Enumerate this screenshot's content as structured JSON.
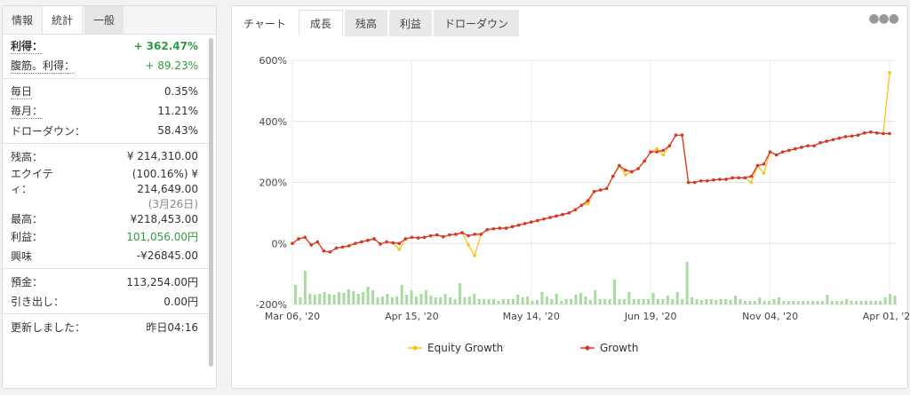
{
  "left_tabs": [
    "情報",
    "統計",
    "一般"
  ],
  "stats": {
    "profit_label": "利得：",
    "profit": "+ 362.47%",
    "abs_label": "腹筋。利得：",
    "abs": "+ 89.23%",
    "daily_label": "毎日",
    "daily": "0.35%",
    "monthly_label": "毎月：",
    "monthly": "11.21%",
    "drawdown_label": "ドローダウン：",
    "drawdown": "58.43%",
    "balance_label": "残高：",
    "balance": "¥ 214,310.00",
    "equity_label_1": "エクイテ",
    "equity_label_2": "ィ：",
    "equity_pct": "(100.16%) ¥",
    "equity": "214,649.00",
    "high_label": "最高：",
    "high_date": "(3月26日)",
    "high": "¥218,453.00",
    "gain_label": "利益：",
    "gain": "101,056.00円",
    "interest_label": "興味",
    "interest": "-¥26845.00",
    "deposit_label": "預金：",
    "deposit": "113,254.00円",
    "withdraw_label": "引き出し：",
    "withdraw": "0.00円",
    "updated_label": "更新しました：",
    "updated": "昨日04:16"
  },
  "right_tabs": [
    "チャート",
    "成長",
    "残高",
    "利益",
    "ドローダウン"
  ],
  "more_icon": "more-dots-icon",
  "colors": {
    "equity": "#f5c518",
    "growth": "#d9342b",
    "bars": "#a9dba0",
    "green": "#2d9e3a"
  },
  "chart_data": {
    "type": "line",
    "y_ticks": [
      "600%",
      "400%",
      "200%",
      "0%",
      "-200%"
    ],
    "ylim": [
      -200,
      600
    ],
    "x_ticks": [
      "Mar 06, '20",
      "Apr 15, '20",
      "May 14, '20",
      "Jun 19, '20",
      "Nov 04, '20",
      "Apr 01, '21"
    ],
    "legend": [
      "Equity Growth",
      "Growth"
    ],
    "growth": [
      0,
      15,
      20,
      -5,
      5,
      -25,
      -28,
      -15,
      -12,
      -8,
      0,
      5,
      10,
      15,
      -2,
      5,
      2,
      0,
      15,
      20,
      18,
      20,
      25,
      28,
      22,
      28,
      30,
      35,
      25,
      30,
      30,
      45,
      48,
      50,
      50,
      55,
      60,
      65,
      70,
      75,
      80,
      85,
      90,
      95,
      100,
      110,
      125,
      140,
      170,
      175,
      180,
      220,
      255,
      240,
      235,
      245,
      270,
      300,
      300,
      305,
      320,
      355,
      355,
      200,
      200,
      205,
      205,
      208,
      210,
      210,
      215,
      215,
      215,
      220,
      255,
      260,
      300,
      290,
      300,
      305,
      310,
      315,
      320,
      320,
      330,
      335,
      340,
      345,
      350,
      352,
      355,
      362,
      365,
      362,
      360,
      360
    ],
    "equity": [
      0,
      15,
      20,
      -5,
      5,
      -25,
      -28,
      -15,
      -12,
      -8,
      0,
      5,
      10,
      15,
      -2,
      5,
      2,
      -20,
      15,
      20,
      18,
      20,
      25,
      28,
      22,
      28,
      30,
      35,
      -5,
      -40,
      30,
      45,
      48,
      50,
      50,
      55,
      60,
      65,
      70,
      75,
      80,
      85,
      90,
      95,
      100,
      110,
      125,
      130,
      170,
      175,
      180,
      220,
      255,
      225,
      235,
      245,
      270,
      300,
      310,
      290,
      320,
      355,
      355,
      200,
      200,
      205,
      205,
      208,
      210,
      210,
      215,
      215,
      215,
      200,
      255,
      230,
      300,
      290,
      300,
      305,
      310,
      315,
      320,
      320,
      330,
      335,
      340,
      345,
      350,
      352,
      355,
      362,
      365,
      362,
      360,
      560
    ],
    "bars": [
      110,
      40,
      190,
      60,
      55,
      60,
      70,
      60,
      55,
      70,
      65,
      85,
      75,
      60,
      70,
      100,
      80,
      40,
      45,
      60,
      40,
      45,
      110,
      55,
      80,
      45,
      60,
      80,
      50,
      40,
      40,
      60,
      40,
      30,
      120,
      40,
      45,
      60,
      30,
      30,
      30,
      30,
      20,
      30,
      30,
      30,
      55,
      40,
      45,
      20,
      25,
      70,
      45,
      30,
      60,
      20,
      30,
      30,
      55,
      65,
      45,
      25,
      80,
      30,
      30,
      30,
      140,
      30,
      30,
      70,
      30,
      30,
      30,
      30,
      65,
      30,
      30,
      50,
      30,
      70,
      30,
      240,
      40,
      30,
      25,
      30,
      30,
      25,
      30,
      30,
      25,
      50,
      30,
      20,
      20,
      20,
      40,
      20,
      20,
      30,
      40,
      20,
      20,
      20,
      20,
      20,
      20,
      20,
      20,
      20,
      55,
      20,
      20,
      20,
      30,
      20,
      20,
      20,
      20,
      20,
      20,
      20,
      40,
      60,
      50
    ]
  }
}
